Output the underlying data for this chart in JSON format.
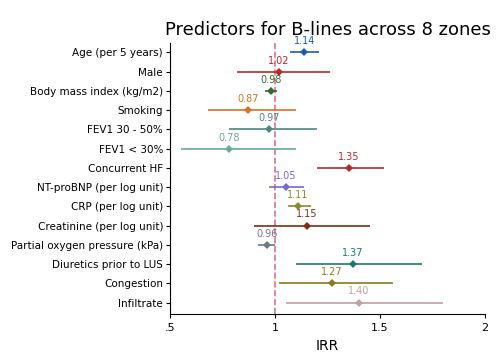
{
  "title": "Predictors for B-lines across 8 zones",
  "xlabel": "IRR",
  "categories": [
    "Age (per 5 years)",
    "Male",
    "Body mass index (kg/m2)",
    "Smoking",
    "FEV1 30 - 50%",
    "FEV1 < 30%",
    "Concurrent HF",
    "NT-proBNP (per log unit)",
    "CRP (per log unit)",
    "Creatinine (per log unit)",
    "Partial oxygen pressure (kPa)",
    "Diuretics prior to LUS",
    "Congestion",
    "Infiltrate"
  ],
  "irr": [
    1.14,
    1.02,
    0.98,
    0.87,
    0.97,
    0.78,
    1.35,
    1.05,
    1.11,
    1.15,
    0.96,
    1.37,
    1.27,
    1.4
  ],
  "ci_lo": [
    1.07,
    0.82,
    0.95,
    0.68,
    0.78,
    0.55,
    1.2,
    0.97,
    1.06,
    0.9,
    0.92,
    1.1,
    1.02,
    1.05
  ],
  "ci_hi": [
    1.21,
    1.26,
    1.01,
    1.1,
    1.2,
    1.1,
    1.52,
    1.14,
    1.17,
    1.45,
    1.0,
    1.7,
    1.56,
    1.8
  ],
  "colors": [
    "#1a5fa8",
    "#b5292b",
    "#2d6e2f",
    "#d4751e",
    "#4e8585",
    "#6aaa98",
    "#b5292b",
    "#7b68c8",
    "#8b8b2a",
    "#7a2e18",
    "#6a7a8a",
    "#1a7a6e",
    "#8b7a1a",
    "#c4a0a0"
  ],
  "xlim": [
    0.5,
    2.0
  ],
  "xticks": [
    0.5,
    1.0,
    1.5,
    2.0
  ],
  "xticklabels": [
    ".5",
    "1",
    "1.5",
    "2"
  ],
  "ref_line": 1.0,
  "ref_color": "#d4748e",
  "title_fontsize": 13,
  "label_fontsize": 7,
  "tick_fontsize": 8,
  "xlabel_fontsize": 10,
  "marker_size": 4.5,
  "lw": 1.2
}
